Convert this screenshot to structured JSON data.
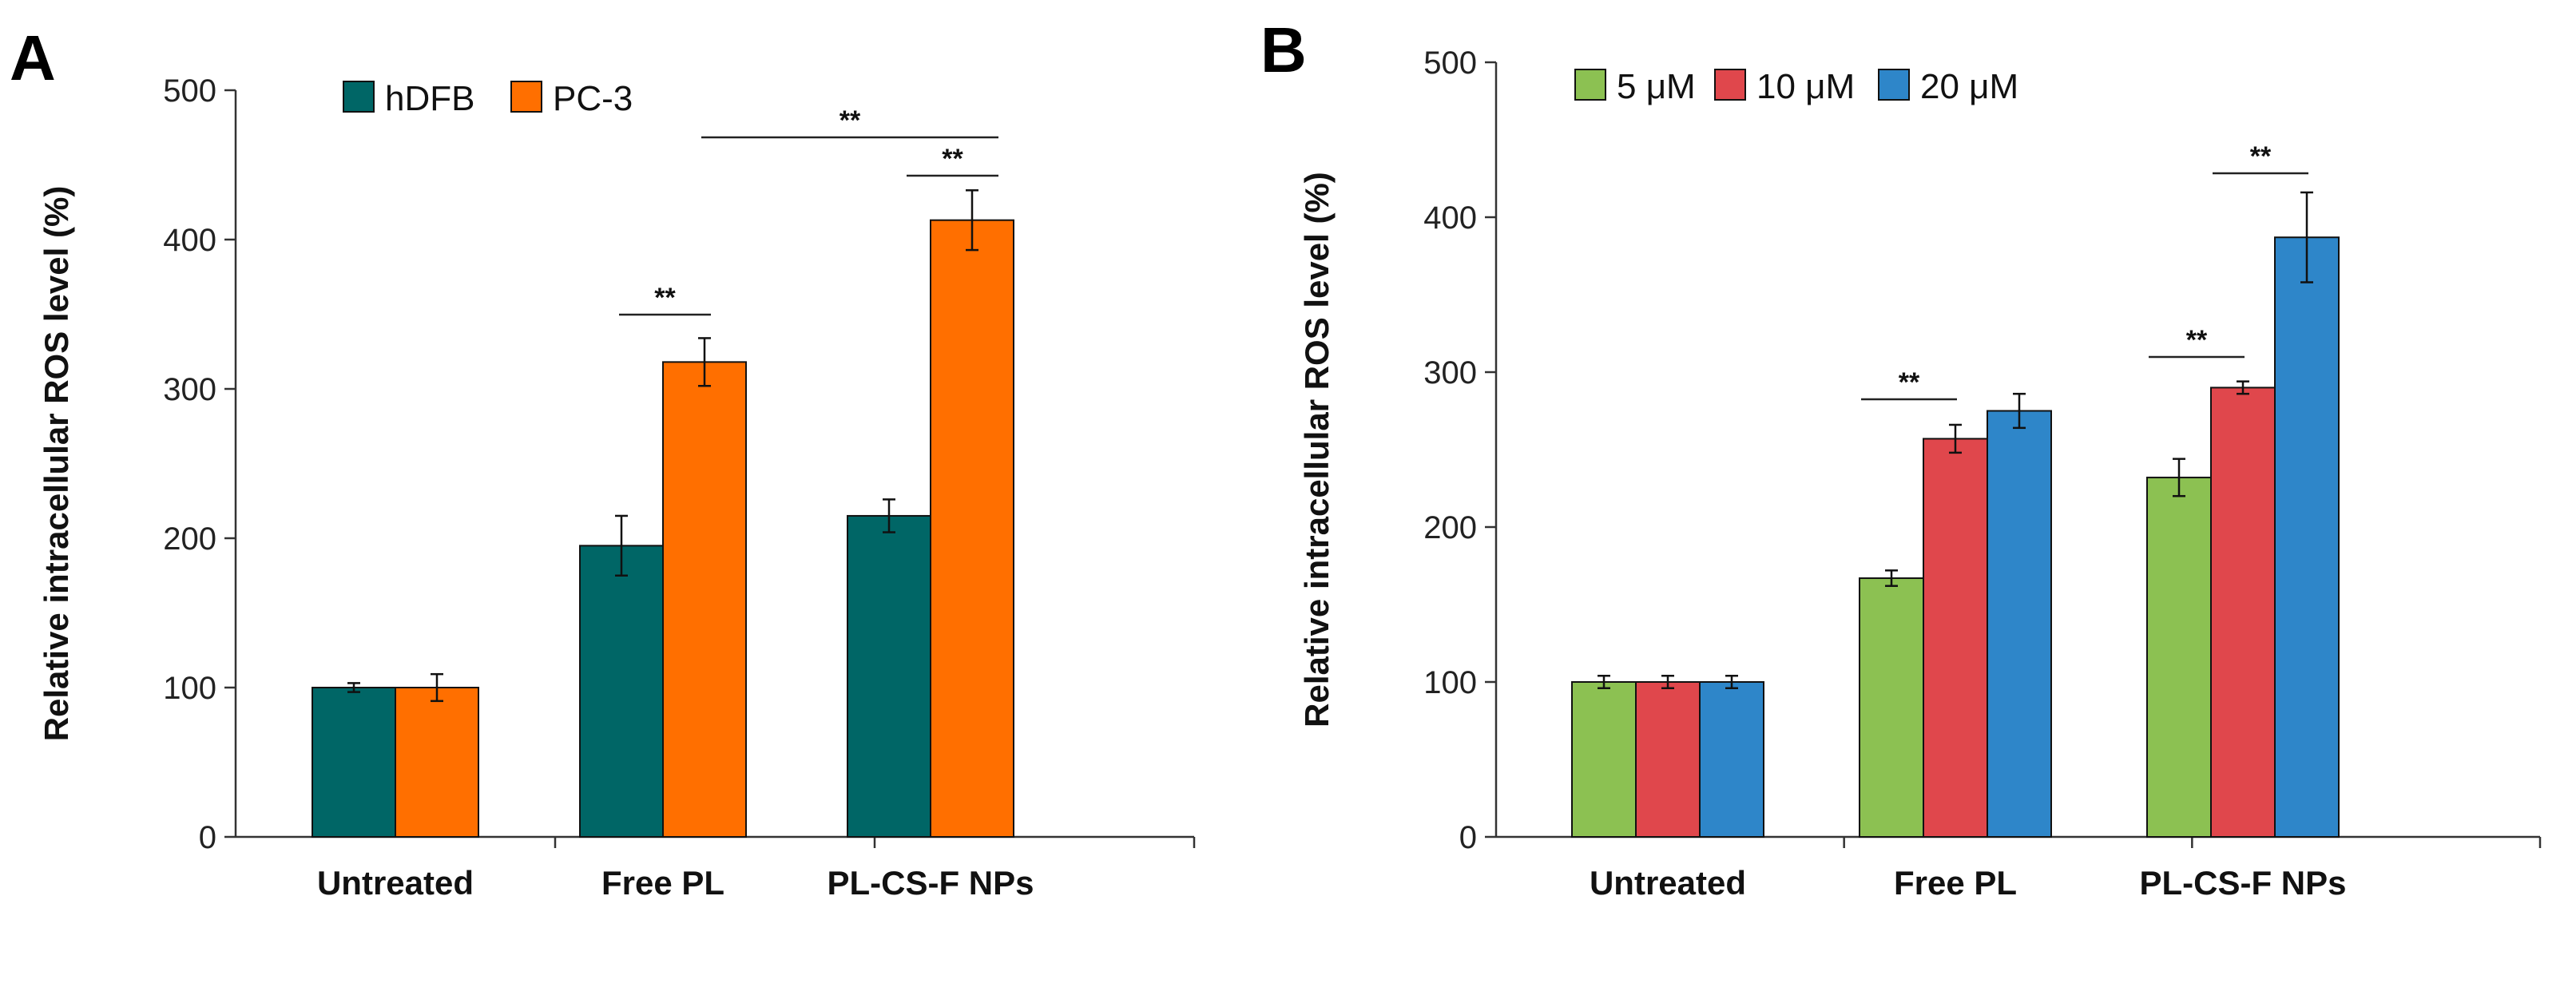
{
  "chart_data": [
    {
      "panel": "A",
      "type": "bar",
      "ylabel": "Relative intracellular ROS level (%)",
      "ylim": [
        0,
        500
      ],
      "yticks": [
        "0",
        "100",
        "200",
        "300",
        "400",
        "500"
      ],
      "categories": [
        "Untreated",
        "Free PL",
        "PL-CS-F NPs"
      ],
      "series": [
        {
          "name": "hDFB",
          "color": "#006666",
          "values": [
            100,
            195,
            215
          ],
          "errors": [
            3,
            20,
            11
          ]
        },
        {
          "name": "PC-3",
          "color": "#ff6f00",
          "values": [
            100,
            318,
            413
          ],
          "errors": [
            9,
            16,
            20
          ]
        }
      ],
      "legend": "top-left",
      "annotations": [
        {
          "label": "**",
          "from": [
            1,
            0
          ],
          "to": [
            1,
            1
          ]
        },
        {
          "label": "**",
          "from": [
            2,
            0
          ],
          "to": [
            2,
            1
          ]
        },
        {
          "label": "**",
          "from": [
            1,
            1
          ],
          "to": [
            2,
            1
          ]
        }
      ]
    },
    {
      "panel": "B",
      "type": "bar",
      "ylabel": "Relative intracellular ROS level (%)",
      "ylim": [
        0,
        500
      ],
      "yticks": [
        "0",
        "100",
        "200",
        "300",
        "400",
        "500"
      ],
      "categories": [
        "Untreated",
        "Free PL",
        "PL-CS-F NPs"
      ],
      "series": [
        {
          "name": "5 μM",
          "color": "#8cc152",
          "values": [
            100,
            167,
            232
          ],
          "errors": [
            4,
            5,
            12
          ]
        },
        {
          "name": "10 μM",
          "color": "#e0474c",
          "values": [
            100,
            257,
            290
          ],
          "errors": [
            4,
            9,
            4
          ]
        },
        {
          "name": "20 μM",
          "color": "#2e86c9",
          "values": [
            100,
            275,
            387
          ],
          "errors": [
            4,
            11,
            29
          ]
        }
      ],
      "legend": "top-left",
      "annotations": [
        {
          "label": "**",
          "from": [
            1,
            0
          ],
          "to": [
            1,
            1
          ]
        },
        {
          "label": "**",
          "from": [
            2,
            0
          ],
          "to": [
            2,
            1
          ]
        },
        {
          "label": "**",
          "from": [
            2,
            1
          ],
          "to": [
            2,
            2
          ]
        }
      ]
    }
  ]
}
